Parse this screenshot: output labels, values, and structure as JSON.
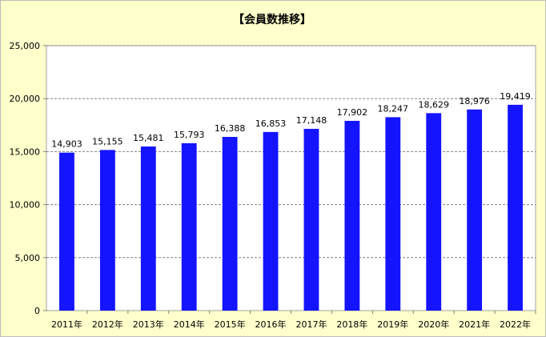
{
  "chart_data": {
    "type": "bar",
    "title": "【会員数推移】",
    "categories": [
      "2011年",
      "2012年",
      "2013年",
      "2014年",
      "2015年",
      "2016年",
      "2017年",
      "2018年",
      "2019年",
      "2020年",
      "2021年",
      "2022年"
    ],
    "values": [
      14903,
      15155,
      15481,
      15793,
      16388,
      16853,
      17148,
      17902,
      18247,
      18629,
      18976,
      19419
    ],
    "data_labels": [
      "14,903",
      "15,155",
      "15,481",
      "15,793",
      "16,388",
      "16,853",
      "17,148",
      "17,902",
      "18,247",
      "18,629",
      "18,976",
      "19,419"
    ],
    "y_ticks": [
      "0",
      "5,000",
      "10,000",
      "15,000",
      "20,000",
      "25,000"
    ],
    "ylim": [
      0,
      25000
    ],
    "grid": true,
    "legend": "none",
    "colors": {
      "bar": "#1414ff",
      "plot_bg": "#ffffff",
      "page_bg": "#ffffcc",
      "grid": "#808080"
    }
  }
}
